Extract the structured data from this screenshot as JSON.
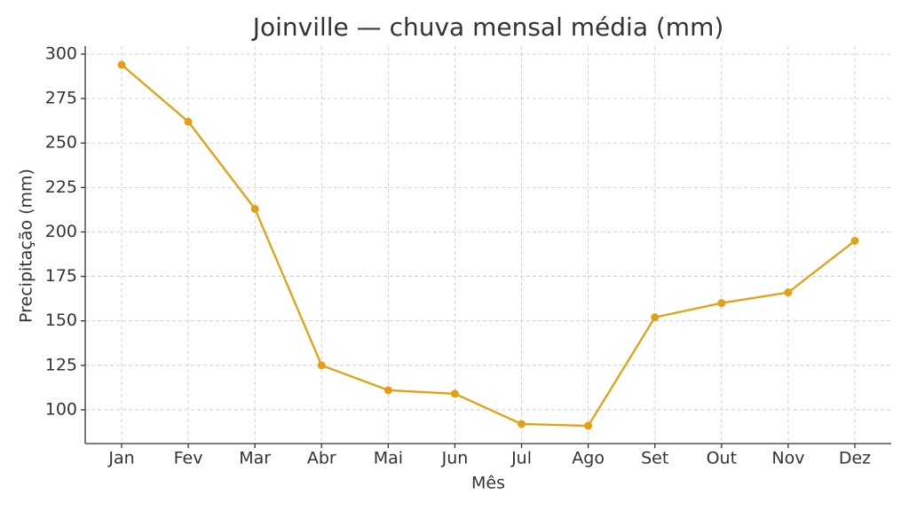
{
  "chart_data": {
    "type": "line",
    "title": "Joinville — chuva mensal média (mm)",
    "x_label": "Mês",
    "y_label": "Precipitação (mm)",
    "categories": [
      "Jan",
      "Fev",
      "Mar",
      "Abr",
      "Mai",
      "Jun",
      "Jul",
      "Ago",
      "Set",
      "Out",
      "Nov",
      "Dez"
    ],
    "series": [
      {
        "name": "Precipitação",
        "color": "#e3a012",
        "values": [
          294,
          262,
          213,
          125,
          111,
          109,
          92,
          91,
          152,
          160,
          166,
          195
        ]
      }
    ],
    "ylim": [
      81,
      304.5
    ],
    "yticks": [
      100,
      125,
      150,
      175,
      200,
      225,
      250,
      275,
      300
    ],
    "grid": true
  }
}
